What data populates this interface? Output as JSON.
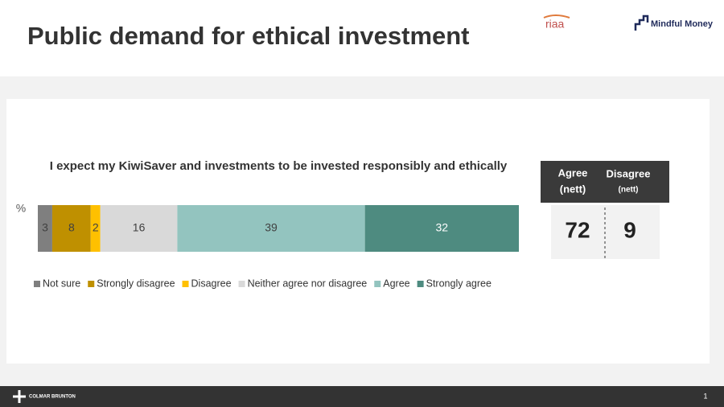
{
  "header": {
    "title": "Public demand for ethical investment",
    "logos": [
      "riaa",
      "Mindful Money"
    ]
  },
  "chart_data": {
    "type": "bar",
    "orientation": "horizontal",
    "stacked": true,
    "title": "I expect my KiwiSaver and investments to be invested responsibly and ethically",
    "y_label": "%",
    "categories": [
      null
    ],
    "xlim": [
      0,
      100
    ],
    "legend": "bottom",
    "series": [
      {
        "name": "Not sure",
        "color": "#7f7f7f",
        "values": [
          3
        ]
      },
      {
        "name": "Strongly disagree",
        "color": "#bf9000",
        "values": [
          8
        ]
      },
      {
        "name": "Disagree",
        "color": "#ffc000",
        "values": [
          2
        ]
      },
      {
        "name": "Neither agree nor disagree",
        "color": "#d9d9d9",
        "values": [
          16
        ]
      },
      {
        "name": "Agree",
        "color": "#93c4bf",
        "values": [
          39
        ]
      },
      {
        "name": "Strongly agree",
        "color": "#4e8b80",
        "values": [
          32
        ]
      }
    ]
  },
  "summary": {
    "agree": {
      "label": "Agree",
      "sub": "(nett)",
      "value": 72
    },
    "disagree": {
      "label": "Disagree",
      "sub": "(nett)",
      "value": 9
    }
  },
  "footer": {
    "brand": "COLMAR BRUNTON",
    "page": "1"
  }
}
